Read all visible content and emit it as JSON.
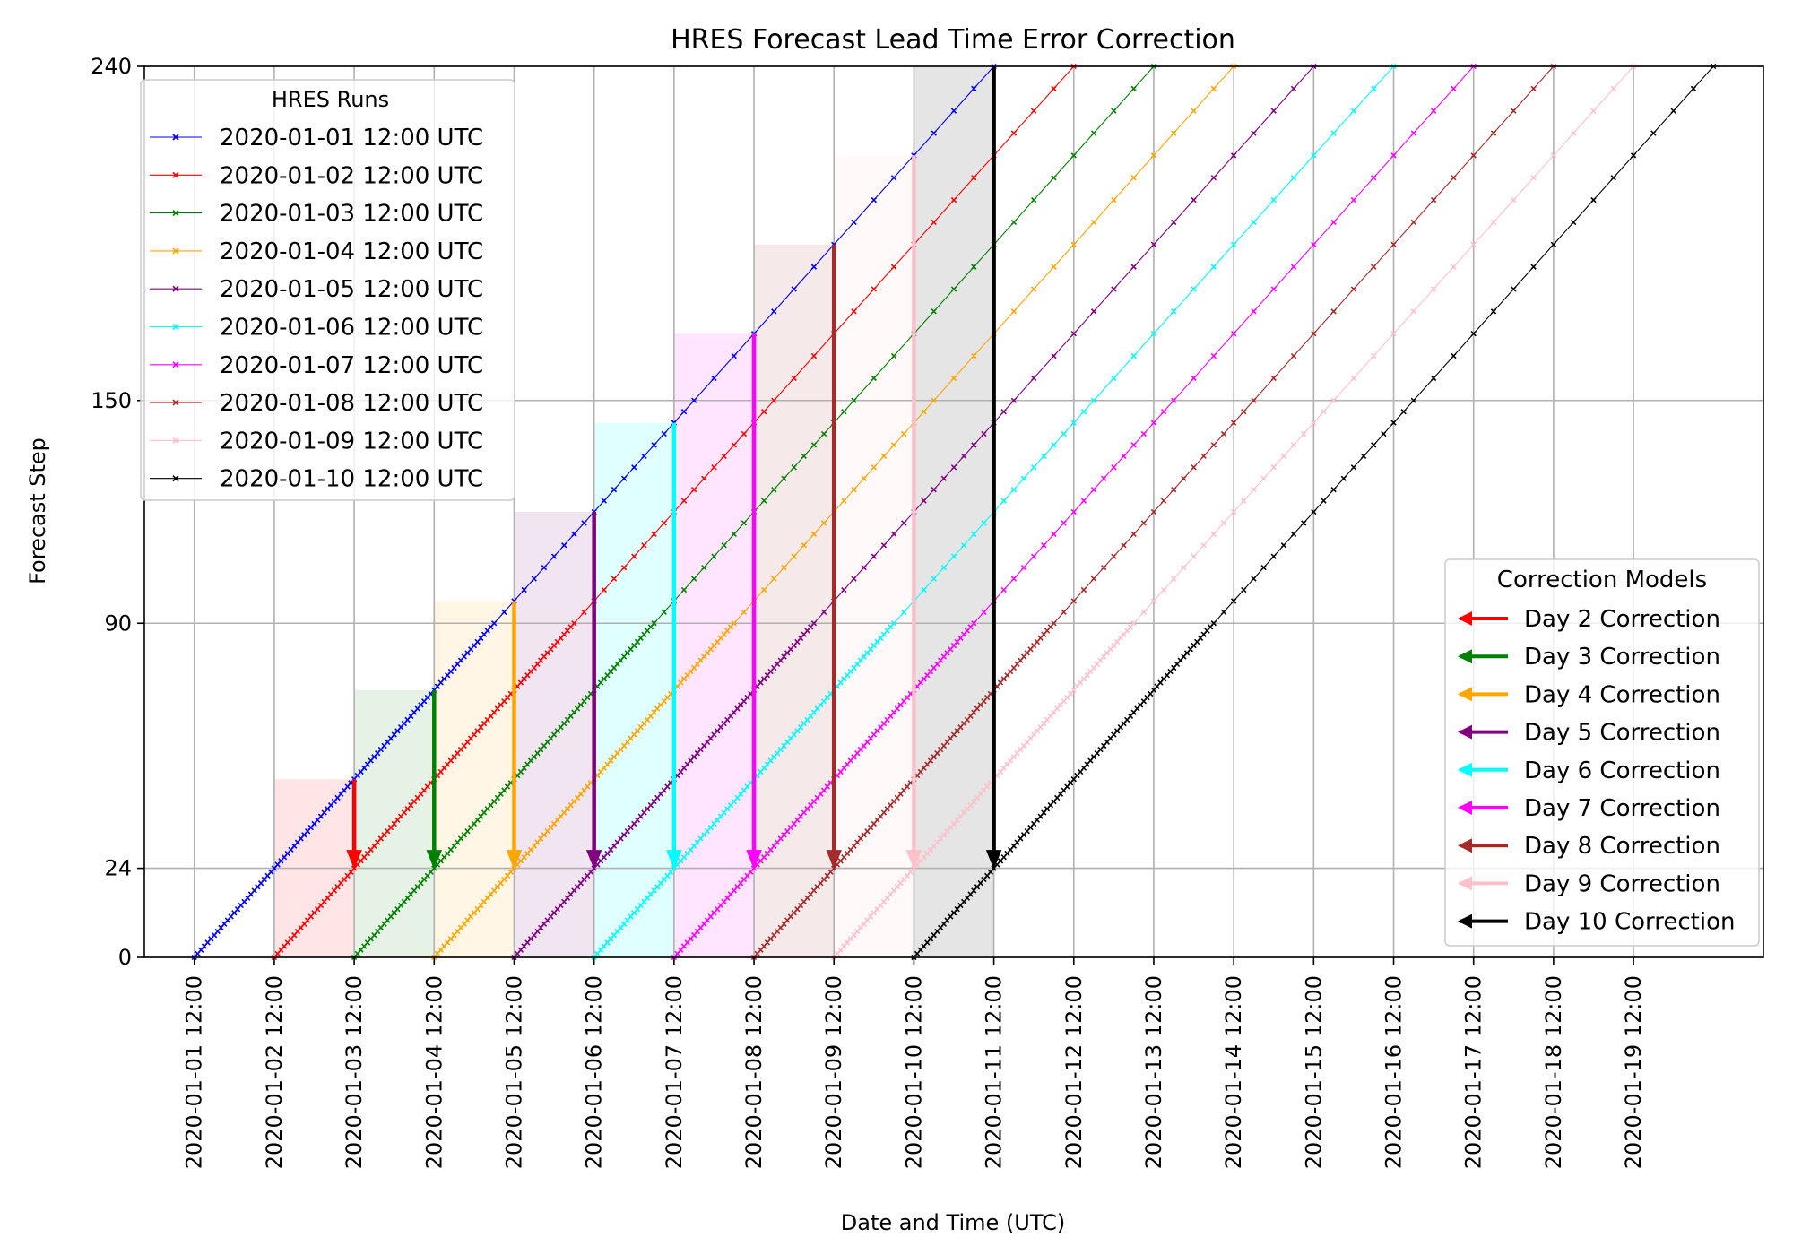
{
  "chart_data": {
    "type": "line",
    "title": "HRES Forecast Lead Time Error Correction",
    "xlabel": "Date and Time (UTC)",
    "ylabel": "Forecast Step",
    "ylim": [
      0,
      240
    ],
    "yticks": [
      0,
      24,
      90,
      150,
      240
    ],
    "xlim": [
      "2019-12-31T21:00",
      "2020-01-21T03:00"
    ],
    "xticks": [
      "2020-01-01 12:00",
      "2020-01-02 12:00",
      "2020-01-03 12:00",
      "2020-01-04 12:00",
      "2020-01-05 12:00",
      "2020-01-06 12:00",
      "2020-01-07 12:00",
      "2020-01-08 12:00",
      "2020-01-09 12:00",
      "2020-01-10 12:00",
      "2020-01-11 12:00",
      "2020-01-12 12:00",
      "2020-01-13 12:00",
      "2020-01-14 12:00",
      "2020-01-15 12:00",
      "2020-01-16 12:00",
      "2020-01-17 12:00",
      "2020-01-18 12:00",
      "2020-01-19 12:00"
    ],
    "grid": true,
    "step_schedule": {
      "hourly_to": 90,
      "three_hourly_to": 150,
      "six_hourly_to": 240
    },
    "legend_runs": {
      "title": "HRES Runs",
      "placement": "upper-left",
      "entries": [
        {
          "label": "2020-01-01 12:00 UTC",
          "color": "#0000ff"
        },
        {
          "label": "2020-01-02 12:00 UTC",
          "color": "#ff0000"
        },
        {
          "label": "2020-01-03 12:00 UTC",
          "color": "#008000"
        },
        {
          "label": "2020-01-04 12:00 UTC",
          "color": "#ffa500"
        },
        {
          "label": "2020-01-05 12:00 UTC",
          "color": "#800080"
        },
        {
          "label": "2020-01-06 12:00 UTC",
          "color": "#00ffff"
        },
        {
          "label": "2020-01-07 12:00 UTC",
          "color": "#ff00ff"
        },
        {
          "label": "2020-01-08 12:00 UTC",
          "color": "#a52a2a"
        },
        {
          "label": "2020-01-09 12:00 UTC",
          "color": "#ffc0cb"
        },
        {
          "label": "2020-01-10 12:00 UTC",
          "color": "#000000"
        }
      ]
    },
    "legend_corrections": {
      "title": "Correction Models",
      "placement": "lower-right",
      "entries": [
        {
          "label": "Day 2 Correction",
          "color": "#ff0000"
        },
        {
          "label": "Day 3 Correction",
          "color": "#008000"
        },
        {
          "label": "Day 4 Correction",
          "color": "#ffa500"
        },
        {
          "label": "Day 5 Correction",
          "color": "#800080"
        },
        {
          "label": "Day 6 Correction",
          "color": "#00ffff"
        },
        {
          "label": "Day 7 Correction",
          "color": "#ff00ff"
        },
        {
          "label": "Day 8 Correction",
          "color": "#a52a2a"
        },
        {
          "label": "Day 9 Correction",
          "color": "#ffc0cb"
        },
        {
          "label": "Day 10 Correction",
          "color": "#000000"
        }
      ]
    },
    "corrections": [
      {
        "day": 2,
        "valid_time": "2020-01-03 12:00",
        "from_step": 48,
        "to_step": 24,
        "color": "#ff0000",
        "shade_alpha": 0.1
      },
      {
        "day": 3,
        "valid_time": "2020-01-04 12:00",
        "from_step": 72,
        "to_step": 24,
        "color": "#008000",
        "shade_alpha": 0.1
      },
      {
        "day": 4,
        "valid_time": "2020-01-05 12:00",
        "from_step": 96,
        "to_step": 24,
        "color": "#ffa500",
        "shade_alpha": 0.1
      },
      {
        "day": 5,
        "valid_time": "2020-01-06 12:00",
        "from_step": 120,
        "to_step": 24,
        "color": "#800080",
        "shade_alpha": 0.1
      },
      {
        "day": 6,
        "valid_time": "2020-01-07 12:00",
        "from_step": 144,
        "to_step": 24,
        "color": "#00ffff",
        "shade_alpha": 0.12
      },
      {
        "day": 7,
        "valid_time": "2020-01-08 12:00",
        "from_step": 168,
        "to_step": 24,
        "color": "#ff00ff",
        "shade_alpha": 0.1
      },
      {
        "day": 8,
        "valid_time": "2020-01-09 12:00",
        "from_step": 192,
        "to_step": 24,
        "color": "#a52a2a",
        "shade_alpha": 0.1
      },
      {
        "day": 9,
        "valid_time": "2020-01-10 12:00",
        "from_step": 216,
        "to_step": 24,
        "color": "#ffc0cb",
        "shade_alpha": 0.1
      },
      {
        "day": 10,
        "valid_time": "2020-01-11 12:00",
        "from_step": 240,
        "to_step": 24,
        "color": "#000000",
        "shade_alpha": 0.1
      }
    ],
    "series": [
      {
        "name": "2020-01-01 12:00 UTC",
        "init": "2020-01-01 12:00",
        "color": "#0000ff"
      },
      {
        "name": "2020-01-02 12:00 UTC",
        "init": "2020-01-02 12:00",
        "color": "#ff0000"
      },
      {
        "name": "2020-01-03 12:00 UTC",
        "init": "2020-01-03 12:00",
        "color": "#008000"
      },
      {
        "name": "2020-01-04 12:00 UTC",
        "init": "2020-01-04 12:00",
        "color": "#ffa500"
      },
      {
        "name": "2020-01-05 12:00 UTC",
        "init": "2020-01-05 12:00",
        "color": "#800080"
      },
      {
        "name": "2020-01-06 12:00 UTC",
        "init": "2020-01-06 12:00",
        "color": "#00ffff"
      },
      {
        "name": "2020-01-07 12:00 UTC",
        "init": "2020-01-07 12:00",
        "color": "#ff00ff"
      },
      {
        "name": "2020-01-08 12:00 UTC",
        "init": "2020-01-08 12:00",
        "color": "#a52a2a"
      },
      {
        "name": "2020-01-09 12:00 UTC",
        "init": "2020-01-09 12:00",
        "color": "#ffc0cb"
      },
      {
        "name": "2020-01-10 12:00 UTC",
        "init": "2020-01-10 12:00",
        "color": "#000000"
      }
    ]
  }
}
